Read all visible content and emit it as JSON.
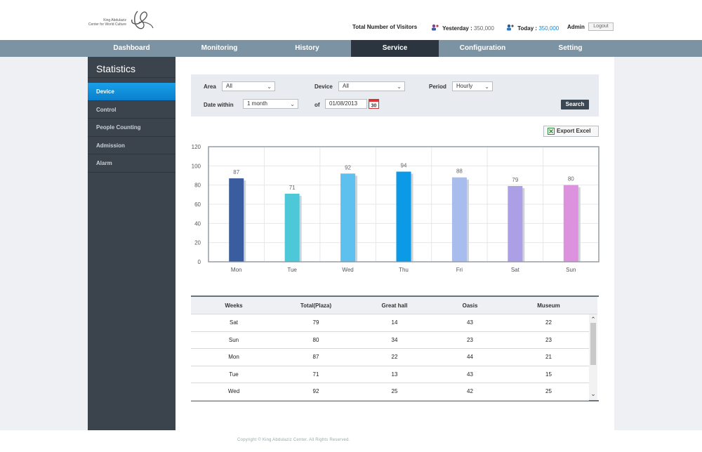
{
  "header": {
    "logo_line1": "King Abdulaziz",
    "logo_line2": "Center for World Culture",
    "visitors_title": "Total Number of Visitors",
    "yesterday_label": "Yesterday :",
    "yesterday_value": "350,000",
    "today_label": "Today :",
    "today_value": "350,000",
    "user": "Admin",
    "logout": "Logout"
  },
  "nav": {
    "items": [
      {
        "label": "Dashboard"
      },
      {
        "label": "Monitoring"
      },
      {
        "label": "History"
      },
      {
        "label": "Service"
      },
      {
        "label": "Configuration"
      },
      {
        "label": "Setting"
      }
    ],
    "active_index": 3
  },
  "sidebar": {
    "title": "Statistics",
    "items": [
      {
        "label": "Device"
      },
      {
        "label": "Control"
      },
      {
        "label": "People Counting"
      },
      {
        "label": "Admission"
      },
      {
        "label": "Alarm"
      }
    ],
    "active_index": 0
  },
  "filter": {
    "area_label": "Area",
    "area_value": "All",
    "device_label": "Device",
    "device_value": "All",
    "period_label": "Period",
    "period_value": "Hourly",
    "date_within_label": "Date within",
    "date_within_value": "1 month",
    "of_label": "of",
    "date_value": "01/08/2013",
    "calendar_day": "30",
    "search": "Search"
  },
  "export_label": "Export Excel",
  "chart_data": {
    "type": "bar",
    "categories": [
      "Mon",
      "Tue",
      "Wed",
      "Thu",
      "Fri",
      "Sat",
      "Sun"
    ],
    "values": [
      87,
      71,
      92,
      94,
      88,
      79,
      80
    ],
    "colors": [
      "#3a5da0",
      "#4cc8d8",
      "#5ec0ee",
      "#0c99e6",
      "#a8bdee",
      "#ac9fe6",
      "#dd92dd"
    ],
    "yticks": [
      0,
      20,
      40,
      60,
      80,
      100,
      120
    ],
    "ylim": [
      0,
      120
    ],
    "grid": true,
    "data_labels": true
  },
  "table": {
    "headers": [
      "Weeks",
      "Total(Plaza)",
      "Great hall",
      "Oasis",
      "Museum"
    ],
    "rows": [
      [
        "Sat",
        "79",
        "14",
        "43",
        "22"
      ],
      [
        "Sun",
        "80",
        "34",
        "23",
        "23"
      ],
      [
        "Mon",
        "87",
        "22",
        "44",
        "21"
      ],
      [
        "Tue",
        "71",
        "13",
        "43",
        "15"
      ],
      [
        "Wed",
        "92",
        "25",
        "42",
        "25"
      ]
    ]
  },
  "footer": {
    "copyright": "Copyright © King Abdulaziz Center. All Rights Reserved."
  }
}
